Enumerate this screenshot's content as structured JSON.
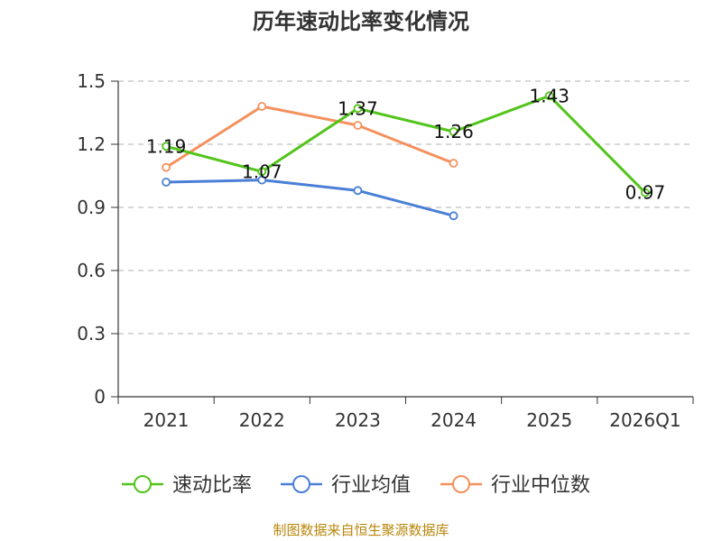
{
  "chart_data": {
    "type": "line",
    "title": "历年速动比率变化情况",
    "categories": [
      "2021",
      "2022",
      "2023",
      "2024",
      "2025",
      "2026Q1"
    ],
    "ylim": [
      0,
      1.5
    ],
    "yticks": [
      "0",
      "0.3",
      "0.6",
      "0.9",
      "1.2",
      "1.5"
    ],
    "ytick_values": [
      0,
      0.3,
      0.6,
      0.9,
      1.2,
      1.5
    ],
    "grid": true,
    "legend_position": "bottom",
    "series": [
      {
        "name": "速动比率",
        "color": "#52c41a",
        "values": [
          1.19,
          1.07,
          1.37,
          1.26,
          1.43,
          0.97
        ],
        "labels": [
          "1.19",
          "1.07",
          "1.37",
          "1.26",
          "1.43",
          "0.97"
        ],
        "show_labels": true
      },
      {
        "name": "行业均值",
        "color": "#4a7fd6",
        "values": [
          1.02,
          1.03,
          0.98,
          0.86,
          null,
          null
        ],
        "show_labels": false
      },
      {
        "name": "行业中位数",
        "color": "#f4915d",
        "values": [
          1.09,
          1.38,
          1.29,
          1.11,
          null,
          null
        ],
        "show_labels": false
      }
    ],
    "source": "制图数据来自恒生聚源数据库"
  }
}
